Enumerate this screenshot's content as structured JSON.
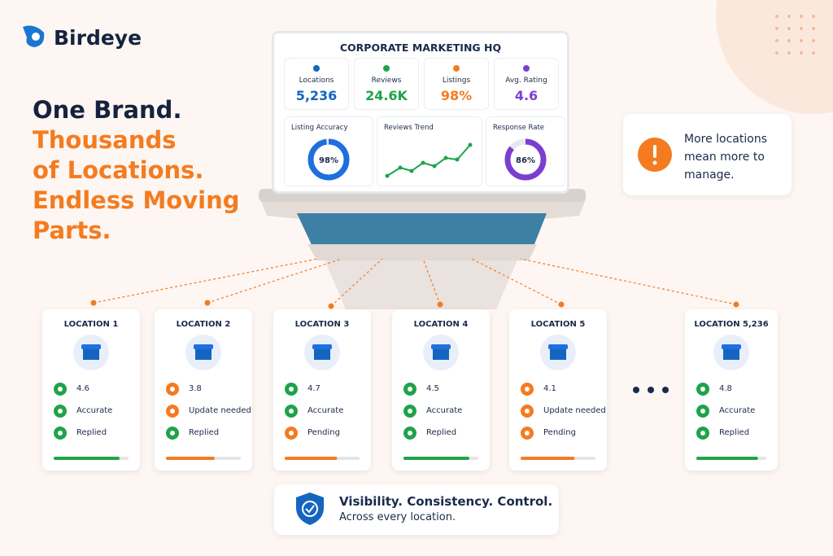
{
  "brand": "Birdeye",
  "headline": [
    "One Brand.",
    "Thousands",
    "of Locations.",
    "Endless Moving",
    "Parts."
  ],
  "dashboard": {
    "title": "CORPORATE MARKETING HQ",
    "stats": [
      {
        "label": "Locations",
        "value": "5,236",
        "color": "#1565c0"
      },
      {
        "label": "Reviews",
        "value": "24.6K",
        "color": "#1fa34a"
      },
      {
        "label": "Listings",
        "value": "98%",
        "color": "#f47b20"
      },
      {
        "label": "Avg. Rating",
        "value": "4.6",
        "color": "#7b3fd0"
      }
    ],
    "panels": [
      {
        "label": "Listing Accuracy",
        "value": 98,
        "value_label": "98%",
        "color": "#1e6fe0"
      },
      {
        "label": "Reviews Trend"
      },
      {
        "label": "Response Rate",
        "value": 86,
        "value_label": "86%",
        "color": "#7b3fd0"
      }
    ]
  },
  "callout": "More locations mean more to manage.",
  "locations": [
    {
      "name": "LOCATION 1",
      "rating": 4.6,
      "listing": "Accurate",
      "reviews": "Replied",
      "colors": [
        "#1fa34a",
        "#1fa34a",
        "#1fa34a",
        "#1fa34a"
      ]
    },
    {
      "name": "LOCATION 2",
      "rating": 3.8,
      "listing": "Update needed",
      "reviews": "Replied",
      "colors": [
        "#f47b20",
        "#f47b20",
        "#1fa34a",
        "#f47b20"
      ]
    },
    {
      "name": "LOCATION 3",
      "rating": 4.7,
      "listing": "Accurate",
      "reviews": "Pending",
      "colors": [
        "#1fa34a",
        "#1fa34a",
        "#f47b20",
        "#f47b20"
      ]
    },
    {
      "name": "LOCATION 4",
      "rating": 4.5,
      "listing": "Accurate",
      "reviews": "Replied",
      "colors": [
        "#1fa34a",
        "#1fa34a",
        "#1fa34a",
        "#1fa34a"
      ]
    },
    {
      "name": "LOCATION 5",
      "rating": 4.1,
      "listing": "Update needed",
      "reviews": "Pending",
      "colors": [
        "#f47b20",
        "#f47b20",
        "#f47b20",
        "#f47b20"
      ]
    },
    {
      "name": "LOCATION 5,236",
      "rating": 4.8,
      "listing": "Accurate",
      "reviews": "Replied",
      "colors": [
        "#1fa34a",
        "#1fa34a",
        "#1fa34a",
        "#1fa34a"
      ]
    }
  ],
  "footer": {
    "title": "Visibility. Consistency. Control.",
    "subtitle": "Across every location."
  }
}
